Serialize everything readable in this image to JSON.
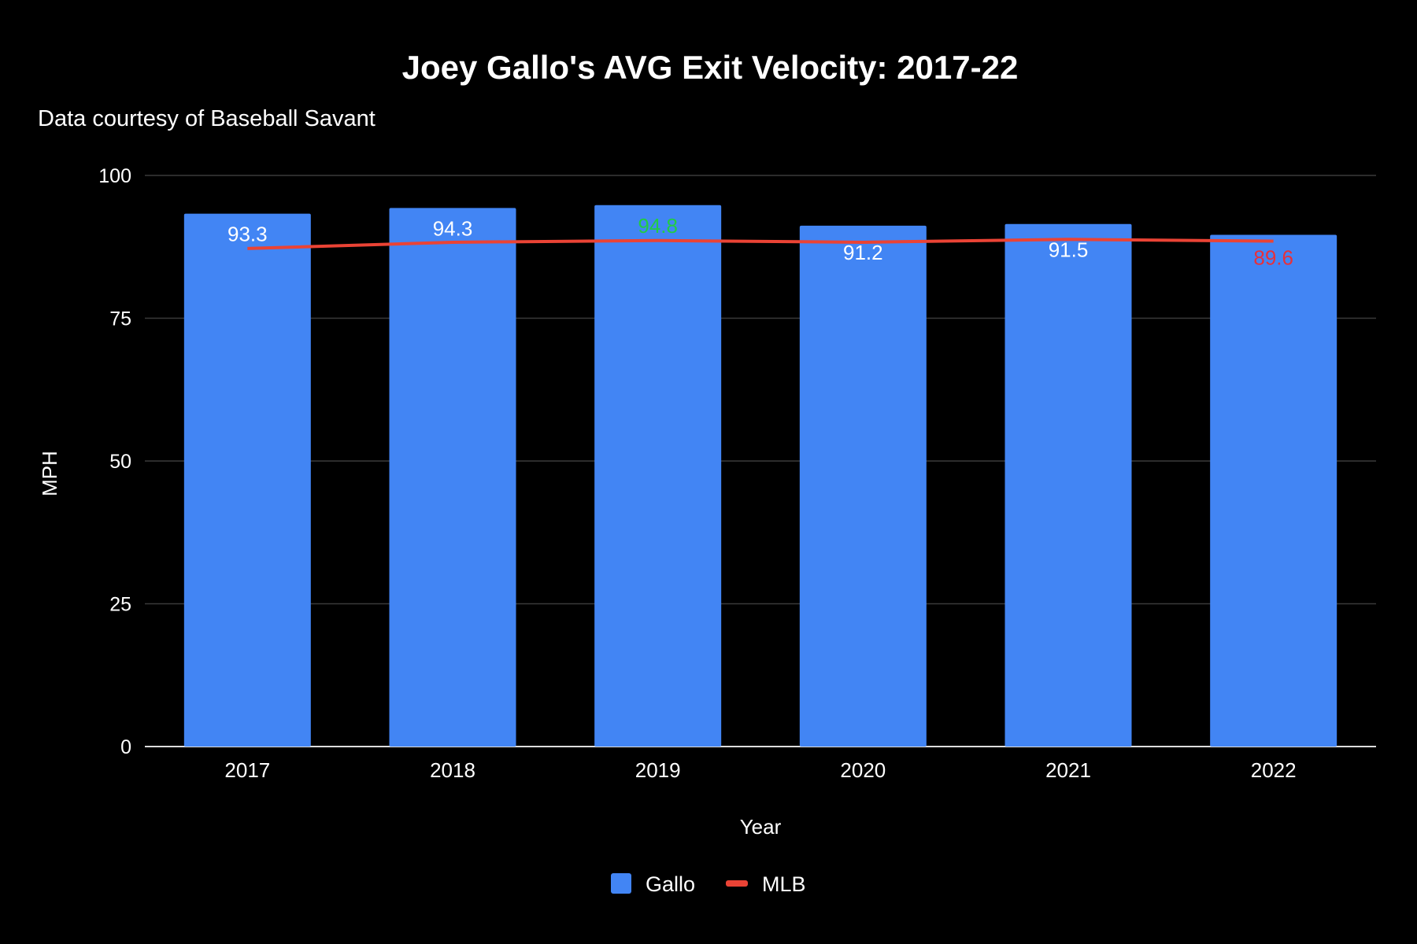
{
  "chart_data": {
    "type": "bar",
    "title": "Joey Gallo's AVG Exit Velocity: 2017-22",
    "subtitle": "Data courtesy of Baseball Savant",
    "xlabel": "Year",
    "ylabel": "MPH",
    "ylim": [
      0,
      100
    ],
    "yticks": [
      "0",
      "25",
      "50",
      "75",
      "100"
    ],
    "grid": true,
    "legend_position": "bottom",
    "categories": [
      "2017",
      "2018",
      "2019",
      "2020",
      "2021",
      "2022"
    ],
    "series": [
      {
        "name": "Gallo",
        "type": "bar",
        "color": "#4285f4",
        "values": [
          93.3,
          94.3,
          94.8,
          91.2,
          91.5,
          89.6
        ],
        "labels": [
          "93.3",
          "94.3",
          "94.8",
          "91.2",
          "91.5",
          "89.6"
        ],
        "label_colors": [
          "#ffffff",
          "#ffffff",
          "#22cc44",
          "#ffffff",
          "#ffffff",
          "#e8303a"
        ]
      },
      {
        "name": "MLB",
        "type": "line",
        "color": "#ea4335",
        "values": [
          87.2,
          88.3,
          88.6,
          88.3,
          88.8,
          88.5
        ]
      }
    ]
  }
}
